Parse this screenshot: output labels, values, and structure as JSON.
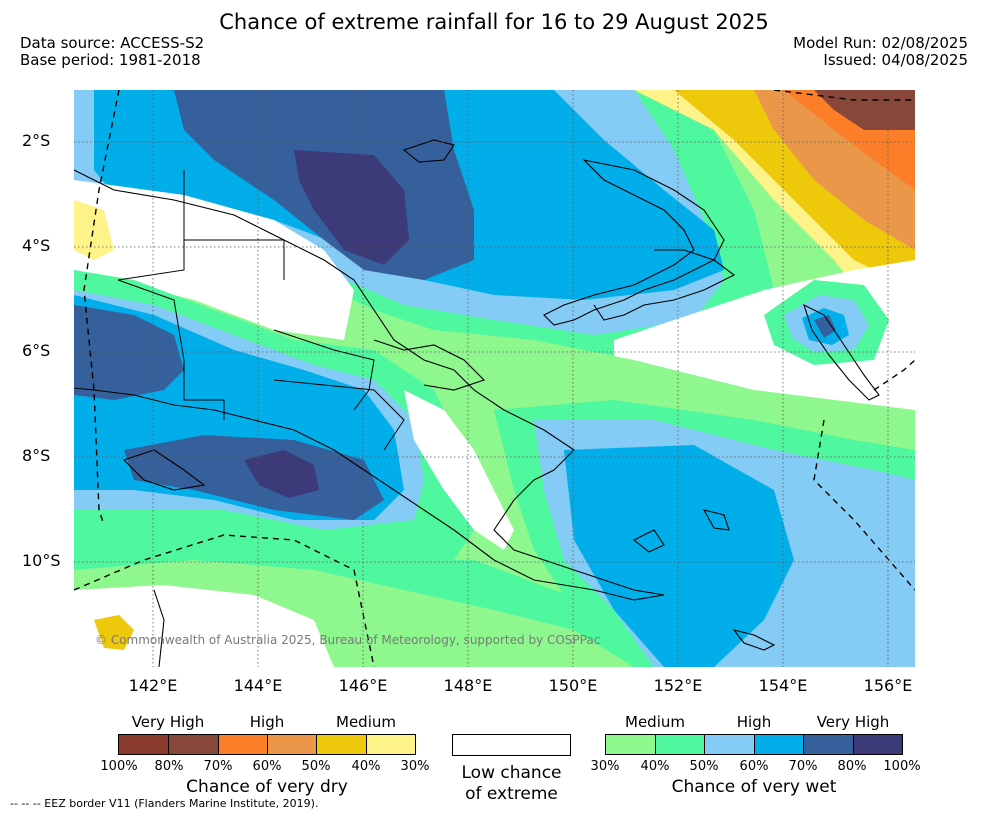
{
  "title": "Chance of extreme rainfall for 16 to 29 August 2025",
  "meta": {
    "data_source": "Data source: ACCESS-S2",
    "base_period": "Base period: 1981-2018",
    "model_run": "Model Run: 02/08/2025",
    "issued": "Issued: 04/08/2025"
  },
  "map": {
    "copyright": "© Commonwealth of Australia 2025, Bureau of Meteorology, supported by COSPPac",
    "lat_labels": [
      "2°S",
      "4°S",
      "6°S",
      "8°S",
      "10°S"
    ],
    "lon_labels": [
      "142°E",
      "144°E",
      "146°E",
      "148°E",
      "150°E",
      "152°E",
      "154°E",
      "156°E"
    ],
    "background_color": "#8ef78e"
  },
  "legend": {
    "dry": {
      "headers": [
        "Very High",
        "High",
        "Medium"
      ],
      "ticks": [
        "100%",
        "80%",
        "70%",
        "60%",
        "50%",
        "40%",
        "30%"
      ],
      "title": "Chance of very dry",
      "colors": [
        "#8b3a2e",
        "#87483a",
        "#fd7e29",
        "#eb974a",
        "#eec80a",
        "#fdf388"
      ]
    },
    "low": {
      "title_line1": "Low chance",
      "title_line2": "of extreme",
      "color": "#ffffff"
    },
    "wet": {
      "headers": [
        "Medium",
        "High",
        "Very High"
      ],
      "ticks": [
        "30%",
        "40%",
        "50%",
        "60%",
        "70%",
        "80%",
        "100%"
      ],
      "title": "Chance of very wet",
      "colors": [
        "#8ef78e",
        "#4ff79e",
        "#84cbf6",
        "#02aeea",
        "#35609c",
        "#3c3a79"
      ]
    }
  },
  "footnote": "-- -- -- EEZ border V11 (Flanders Marine Institute, 2019)."
}
